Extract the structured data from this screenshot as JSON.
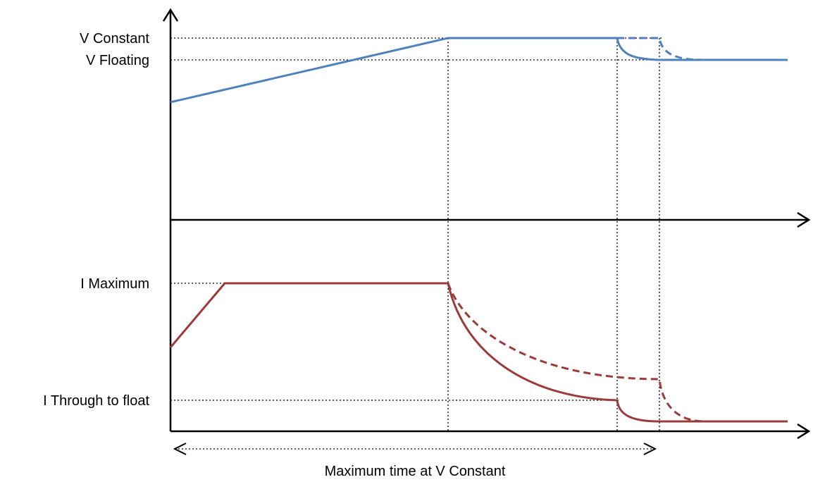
{
  "labels": {
    "v_constant": "V Constant",
    "v_floating": "V Floating",
    "i_maximum": "I Maximum",
    "i_through": "I Through to float",
    "max_time": "Maximum time at V Constant"
  },
  "colors": {
    "voltage": "#4f81bd",
    "current": "#9b3b3b",
    "axis": "#000000"
  }
}
